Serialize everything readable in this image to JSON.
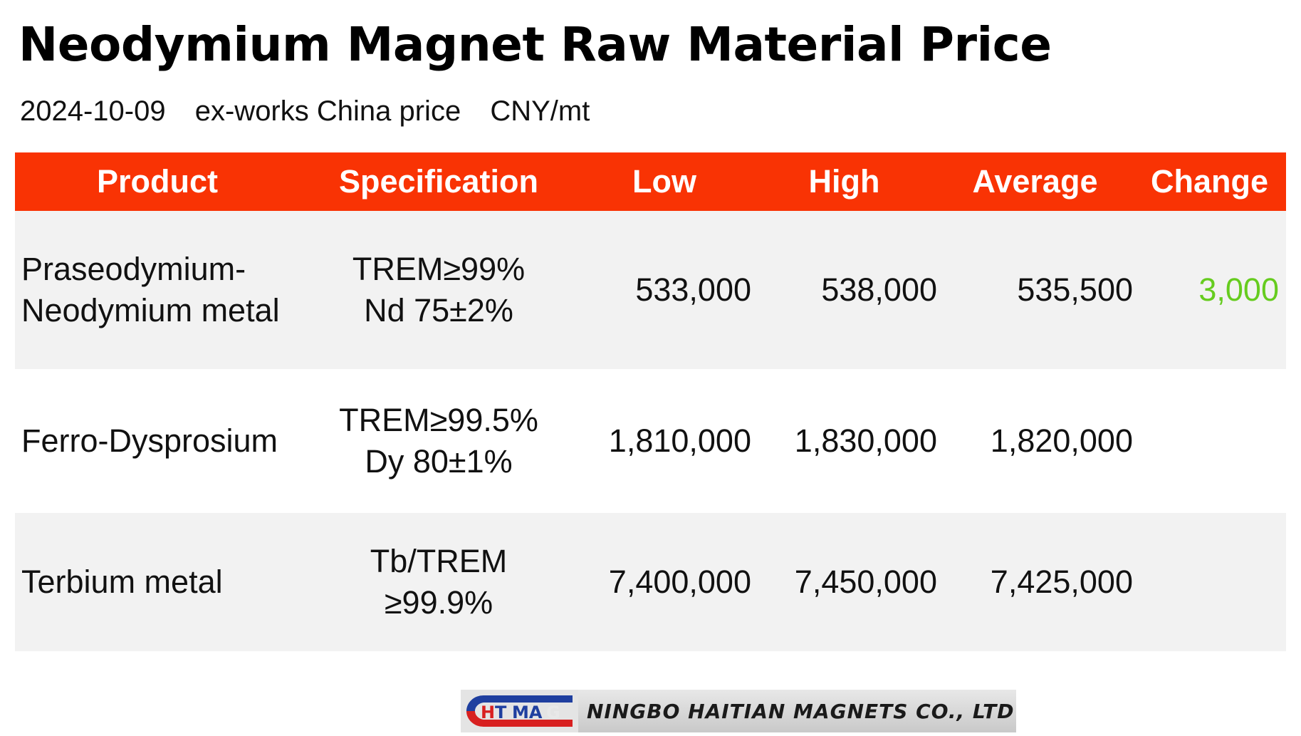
{
  "title": "Neodymium Magnet Raw Material Price",
  "subtitle": {
    "date": "2024-10-09",
    "basis": "ex-works China price",
    "unit": "CNY/mt"
  },
  "chart_data": {
    "type": "table",
    "columns": [
      "Product",
      "Specification",
      "Low",
      "High",
      "Average",
      "Change"
    ],
    "rows": [
      {
        "product": [
          "Praseodymium-",
          "Neodymium metal"
        ],
        "specification": [
          "TREM≥99%",
          "Nd 75±2%"
        ],
        "low": "533,000",
        "high": "538,000",
        "average": "535,500",
        "change": "3,000"
      },
      {
        "product": [
          "Ferro-Dysprosium"
        ],
        "specification": [
          "TREM≥99.5%",
          "Dy 80±1%"
        ],
        "low": "1,810,000",
        "high": "1,830,000",
        "average": "1,820,000",
        "change": ""
      },
      {
        "product": [
          "Terbium metal"
        ],
        "specification": [
          "Tb/TREM",
          "≥99.9%"
        ],
        "low": "7,400,000",
        "high": "7,450,000",
        "average": "7,425,000",
        "change": ""
      }
    ]
  },
  "colors": {
    "header_bg": "#f93304",
    "header_text": "#ffffff",
    "row_shade": "#f2f2f2",
    "change_up": "#66cc1f"
  },
  "logo": {
    "mark_text": "HTMAG",
    "company": "NINGBO HAITIAN MAGNETS CO., LTD"
  }
}
